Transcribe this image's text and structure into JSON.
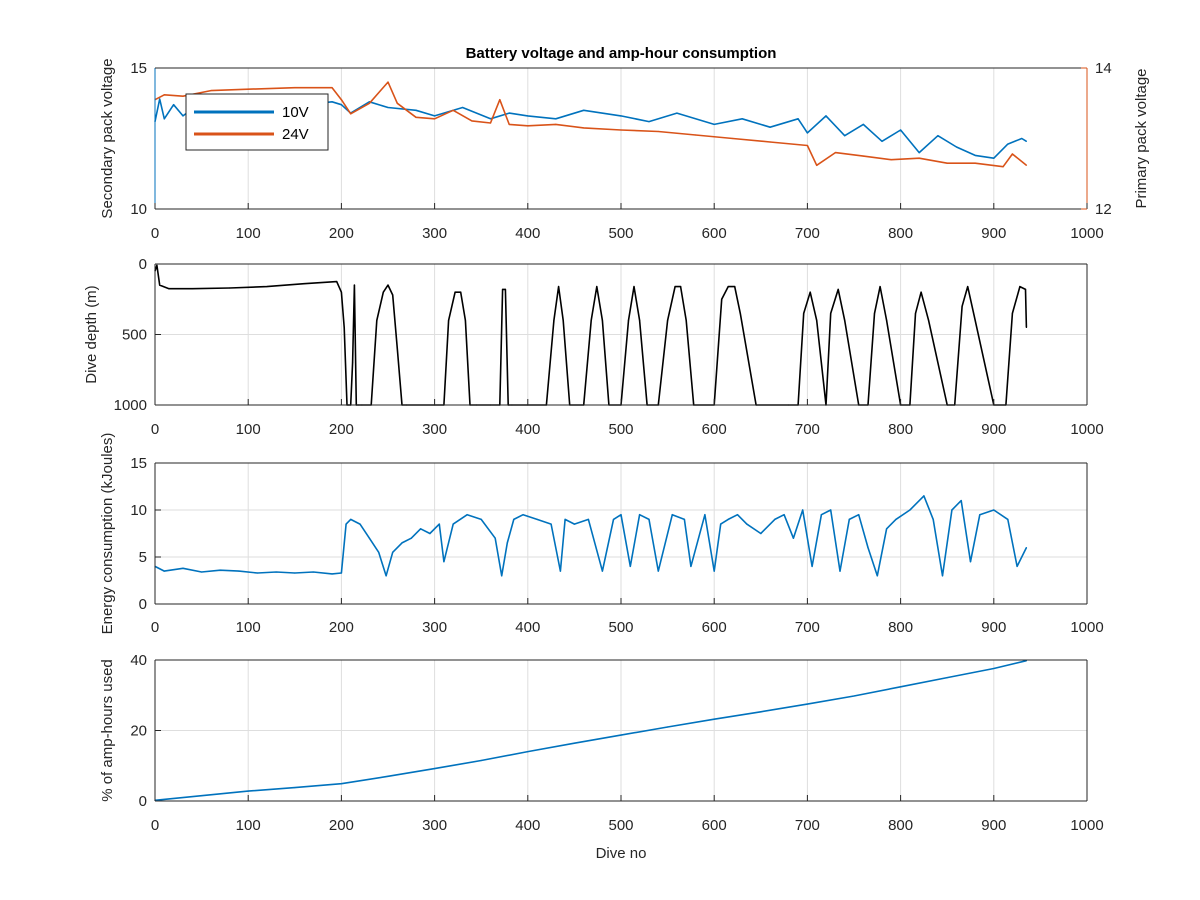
{
  "figure": {
    "title": "Battery voltage and amp-hour consumption",
    "colors": {
      "blue": "#0072bd",
      "orange": "#d95319",
      "black": "#000000",
      "grid": "#dedede",
      "axis": "#262626"
    }
  },
  "chart_data": [
    {
      "id": "voltage",
      "type": "line",
      "title": "Battery voltage and amp-hour consumption",
      "xlabel": "",
      "ylabel_left": "Secondary pack voltage",
      "ylabel_right": "Primary pack voltage",
      "xlim": [
        0,
        1000
      ],
      "ylim_left": [
        10,
        15
      ],
      "ylim_right": [
        12,
        14
      ],
      "xticks": [
        0,
        100,
        200,
        300,
        400,
        500,
        600,
        700,
        800,
        900,
        1000
      ],
      "yticks_left": [
        10,
        15
      ],
      "yticks_right": [
        12,
        14
      ],
      "grid": true,
      "legend": {
        "location": "top-left",
        "entries": [
          "10V",
          "24V"
        ]
      },
      "series": [
        {
          "name": "10V",
          "axis": "left",
          "color": "#0072bd",
          "x": [
            0,
            5,
            10,
            20,
            30,
            50,
            80,
            120,
            160,
            190,
            200,
            210,
            230,
            250,
            280,
            300,
            330,
            360,
            380,
            400,
            430,
            460,
            500,
            530,
            560,
            600,
            630,
            660,
            690,
            700,
            720,
            740,
            760,
            780,
            800,
            820,
            840,
            860,
            880,
            900,
            915,
            930,
            935
          ],
          "y": [
            13.1,
            13.9,
            13.2,
            13.7,
            13.3,
            13.8,
            13.7,
            13.8,
            13.7,
            13.8,
            13.7,
            13.4,
            13.8,
            13.6,
            13.5,
            13.3,
            13.6,
            13.2,
            13.4,
            13.3,
            13.2,
            13.5,
            13.3,
            13.1,
            13.4,
            13.0,
            13.2,
            12.9,
            13.2,
            12.7,
            13.3,
            12.6,
            13.0,
            12.4,
            12.8,
            12.0,
            12.6,
            12.2,
            11.9,
            11.8,
            12.3,
            12.5,
            12.4
          ]
        },
        {
          "name": "24V",
          "axis": "right",
          "color": "#d95319",
          "x": [
            0,
            10,
            30,
            60,
            100,
            150,
            190,
            200,
            210,
            230,
            250,
            260,
            280,
            300,
            320,
            340,
            360,
            370,
            380,
            400,
            430,
            460,
            500,
            540,
            580,
            620,
            660,
            700,
            710,
            730,
            760,
            790,
            820,
            850,
            880,
            910,
            920,
            935
          ],
          "y": [
            13.55,
            13.62,
            13.6,
            13.68,
            13.7,
            13.72,
            13.72,
            13.55,
            13.35,
            13.5,
            13.8,
            13.5,
            13.3,
            13.28,
            13.4,
            13.25,
            13.22,
            13.55,
            13.2,
            13.18,
            13.2,
            13.15,
            13.12,
            13.1,
            13.05,
            13.0,
            12.95,
            12.9,
            12.62,
            12.8,
            12.75,
            12.7,
            12.72,
            12.65,
            12.65,
            12.6,
            12.78,
            12.62
          ]
        }
      ]
    },
    {
      "id": "depth",
      "type": "line",
      "xlabel": "",
      "ylabel": "Dive depth (m)",
      "xlim": [
        0,
        1000
      ],
      "ylim": [
        0,
        1000
      ],
      "y_reversed": true,
      "xticks": [
        0,
        100,
        200,
        300,
        400,
        500,
        600,
        700,
        800,
        900,
        1000
      ],
      "yticks": [
        0,
        500,
        1000
      ],
      "grid": true,
      "series": [
        {
          "color": "#000000",
          "x": [
            0,
            2,
            5,
            15,
            40,
            80,
            120,
            160,
            195,
            200,
            203,
            206,
            208,
            210,
            212,
            214,
            216,
            218,
            222,
            232,
            238,
            245,
            250,
            255,
            260,
            265,
            270,
            300,
            310,
            315,
            322,
            328,
            333,
            338,
            345,
            360,
            370,
            373,
            376,
            379,
            383,
            400,
            420,
            428,
            433,
            438,
            445,
            460,
            468,
            474,
            480,
            487,
            500,
            508,
            514,
            520,
            528,
            540,
            550,
            558,
            564,
            570,
            578,
            600,
            608,
            615,
            622,
            628,
            645,
            680,
            690,
            696,
            703,
            710,
            720,
            725,
            733,
            740,
            755,
            765,
            772,
            778,
            785,
            800,
            810,
            816,
            822,
            830,
            850,
            858,
            866,
            872,
            880,
            900,
            913,
            920,
            928,
            934,
            935
          ],
          "y": [
            50,
            10,
            150,
            175,
            175,
            170,
            160,
            140,
            125,
            200,
            450,
            1000,
            1000,
            1000,
            700,
            150,
            1000,
            1000,
            1000,
            1000,
            400,
            200,
            150,
            220,
            600,
            1000,
            1000,
            1000,
            1000,
            400,
            200,
            200,
            400,
            1000,
            1000,
            1000,
            1000,
            180,
            180,
            1000,
            1000,
            1000,
            1000,
            400,
            160,
            400,
            1000,
            1000,
            400,
            160,
            400,
            1000,
            1000,
            400,
            160,
            400,
            1000,
            1000,
            400,
            160,
            160,
            400,
            1000,
            1000,
            250,
            160,
            160,
            350,
            1000,
            1000,
            1000,
            350,
            200,
            400,
            1000,
            350,
            180,
            400,
            1000,
            1000,
            350,
            160,
            400,
            1000,
            1000,
            350,
            200,
            400,
            1000,
            1000,
            300,
            160,
            400,
            1000,
            1000,
            350,
            160,
            180,
            450
          ]
        }
      ]
    },
    {
      "id": "energy",
      "type": "line",
      "xlabel": "",
      "ylabel": "Energy consumption (kJoules)",
      "xlim": [
        0,
        1000
      ],
      "ylim": [
        0,
        15
      ],
      "xticks": [
        0,
        100,
        200,
        300,
        400,
        500,
        600,
        700,
        800,
        900,
        1000
      ],
      "yticks": [
        0,
        5,
        10,
        15
      ],
      "grid": true,
      "series": [
        {
          "color": "#0072bd",
          "x": [
            0,
            10,
            30,
            50,
            70,
            90,
            110,
            130,
            150,
            170,
            190,
            200,
            205,
            210,
            220,
            230,
            240,
            248,
            255,
            265,
            275,
            285,
            295,
            305,
            310,
            320,
            335,
            350,
            365,
            372,
            378,
            385,
            395,
            410,
            425,
            435,
            440,
            450,
            465,
            480,
            492,
            500,
            510,
            520,
            530,
            540,
            555,
            568,
            575,
            590,
            600,
            607,
            615,
            625,
            635,
            650,
            665,
            675,
            685,
            695,
            705,
            715,
            725,
            735,
            745,
            755,
            765,
            775,
            785,
            795,
            810,
            825,
            835,
            845,
            855,
            865,
            875,
            885,
            900,
            915,
            925,
            935
          ],
          "y": [
            4.0,
            3.5,
            3.8,
            3.4,
            3.6,
            3.5,
            3.3,
            3.4,
            3.3,
            3.4,
            3.2,
            3.3,
            8.5,
            9.0,
            8.5,
            7.0,
            5.5,
            3.0,
            5.5,
            6.5,
            7.0,
            8.0,
            7.5,
            8.5,
            4.5,
            8.5,
            9.5,
            9.0,
            7.0,
            3.0,
            6.5,
            9.0,
            9.5,
            9.0,
            8.5,
            3.5,
            9.0,
            8.5,
            9.0,
            3.5,
            9.0,
            9.5,
            4.0,
            9.5,
            9.0,
            3.5,
            9.5,
            9.0,
            4.0,
            9.5,
            3.5,
            8.5,
            9.0,
            9.5,
            8.5,
            7.5,
            9.0,
            9.5,
            7.0,
            10.0,
            4.0,
            9.5,
            10.0,
            3.5,
            9.0,
            9.5,
            6.0,
            3.0,
            8.0,
            9.0,
            10.0,
            11.5,
            9.0,
            3.0,
            10.0,
            11.0,
            4.5,
            9.5,
            10.0,
            9.0,
            4.0,
            6.0
          ]
        }
      ]
    },
    {
      "id": "amphours",
      "type": "line",
      "xlabel": "Dive no",
      "ylabel": "% of amp-hours used",
      "xlim": [
        0,
        1000
      ],
      "ylim": [
        0,
        40
      ],
      "xticks": [
        0,
        100,
        200,
        300,
        400,
        500,
        600,
        700,
        800,
        900,
        1000
      ],
      "yticks": [
        0,
        20,
        40
      ],
      "grid": true,
      "series": [
        {
          "color": "#0072bd",
          "x": [
            0,
            50,
            100,
            150,
            200,
            250,
            300,
            350,
            400,
            450,
            500,
            550,
            600,
            650,
            700,
            750,
            800,
            850,
            900,
            935
          ],
          "y": [
            0.2,
            1.5,
            2.8,
            3.8,
            4.9,
            7.0,
            9.2,
            11.5,
            14.0,
            16.4,
            18.7,
            21.0,
            23.2,
            25.3,
            27.5,
            29.8,
            32.4,
            35.0,
            37.6,
            39.8
          ]
        }
      ]
    }
  ]
}
